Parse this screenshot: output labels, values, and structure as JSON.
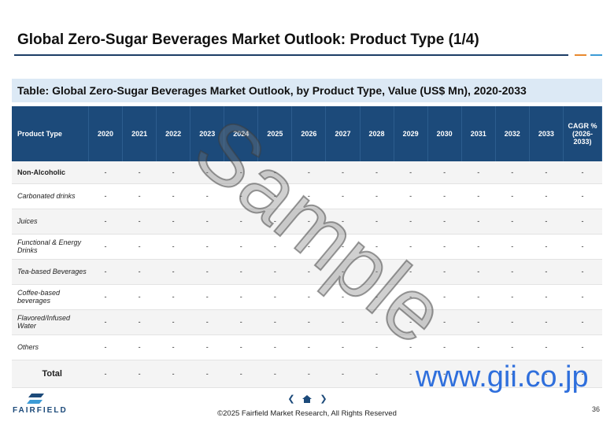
{
  "header": {
    "title": "Global Zero-Sugar Beverages Market Outlook: Product Type (1/4)"
  },
  "table": {
    "title": "Table: Global Zero-Sugar Beverages Market Outlook, by Product Type, Value (US$ Mn), 2020-2033",
    "columns": [
      "Product Type",
      "2020",
      "2021",
      "2022",
      "2023",
      "2024",
      "2025",
      "2026",
      "2027",
      "2028",
      "2029",
      "2030",
      "2031",
      "2032",
      "2033",
      "CAGR % (2026-2033)"
    ],
    "rows": [
      {
        "label": "Non-Alcoholic",
        "cells": [
          "-",
          "-",
          "-",
          "-",
          "-",
          "-",
          "-",
          "-",
          "-",
          "-",
          "-",
          "-",
          "-",
          "-",
          "-"
        ]
      },
      {
        "label": "Carbonated drinks",
        "cells": [
          "-",
          "-",
          "-",
          "-",
          "-",
          "-",
          "-",
          "-",
          "-",
          "-",
          "-",
          "-",
          "-",
          "-",
          "-"
        ]
      },
      {
        "label": "Juices",
        "cells": [
          "-",
          "-",
          "-",
          "-",
          "-",
          "-",
          "-",
          "-",
          "-",
          "-",
          "-",
          "-",
          "-",
          "-",
          "-"
        ]
      },
      {
        "label": "Functional & Energy Drinks",
        "cells": [
          "-",
          "-",
          "-",
          "-",
          "-",
          "-",
          "-",
          "-",
          "-",
          "-",
          "-",
          "-",
          "-",
          "-",
          "-"
        ]
      },
      {
        "label": "Tea-based Beverages",
        "cells": [
          "-",
          "-",
          "-",
          "-",
          "-",
          "-",
          "-",
          "-",
          "-",
          "-",
          "-",
          "-",
          "-",
          "-",
          "-"
        ]
      },
      {
        "label": "Coffee-based beverages",
        "cells": [
          "-",
          "-",
          "-",
          "-",
          "-",
          "-",
          "-",
          "-",
          "-",
          "-",
          "-",
          "-",
          "-",
          "-",
          "-"
        ]
      },
      {
        "label": "Flavored/Infused Water",
        "cells": [
          "-",
          "-",
          "-",
          "-",
          "-",
          "-",
          "-",
          "-",
          "-",
          "-",
          "-",
          "-",
          "-",
          "-",
          "-"
        ]
      },
      {
        "label": "Others",
        "cells": [
          "-",
          "-",
          "-",
          "-",
          "-",
          "-",
          "-",
          "-",
          "-",
          "-",
          "-",
          "-",
          "-",
          "-",
          "-"
        ]
      },
      {
        "label": "Total",
        "cells": [
          "-",
          "-",
          "-",
          "-",
          "-",
          "-",
          "-",
          "-",
          "-",
          "-",
          "-",
          "-",
          "-",
          "-",
          "-"
        ]
      }
    ]
  },
  "watermark": {
    "sample": "Sample",
    "site": "www.gii.co.jp"
  },
  "footer": {
    "logo": "FAIRFIELD",
    "copyright": "©2025 Fairfield Market Research, All Rights Reserved",
    "page": "36"
  }
}
